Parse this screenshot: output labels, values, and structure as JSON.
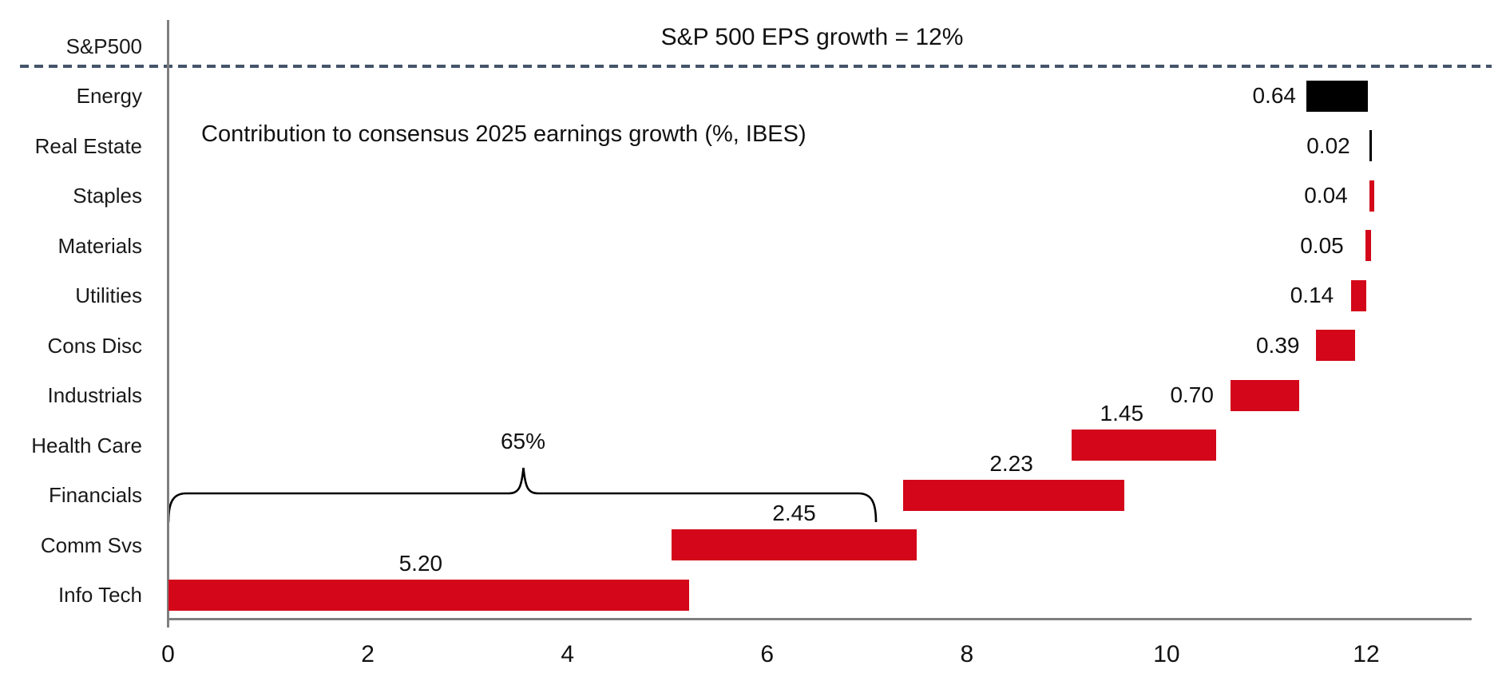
{
  "chart_data": {
    "type": "bar",
    "orientation": "horizontal-waterfall",
    "title": "Contribution to consensus 2025 earnings growth (%, IBES)",
    "reference_line_label": "S&P 500 EPS growth = 12%",
    "reference_total": 12,
    "bracket_annotation": {
      "label": "65%",
      "from": 0,
      "to": 7.09
    },
    "x_ticks": [
      "0",
      "2",
      "4",
      "6",
      "8",
      "10",
      "12"
    ],
    "x_tick_values": [
      0,
      2,
      4,
      6,
      8,
      10,
      12
    ],
    "xlim": [
      0,
      13.05
    ],
    "grid": false,
    "legend": false,
    "rows": [
      {
        "label": "S&P500",
        "type": "reference"
      },
      {
        "label": "Energy",
        "value": 0.64,
        "value_label": "0.64",
        "start": 11.4,
        "end": 12.02,
        "color": "black",
        "label_pos": "left",
        "label_gap": 13
      },
      {
        "label": "Real Estate",
        "value": 0.02,
        "value_label": "0.02",
        "start": 12.03,
        "end": 12.06,
        "color": "black",
        "label_pos": "left",
        "label_gap": 24
      },
      {
        "label": "Staples",
        "value": 0.04,
        "value_label": "0.04",
        "start": 12.03,
        "end": 12.08,
        "color": "red",
        "label_pos": "left",
        "label_gap": 27
      },
      {
        "label": "Materials",
        "value": 0.05,
        "value_label": "0.05",
        "start": 11.99,
        "end": 12.05,
        "color": "red",
        "label_pos": "left",
        "label_gap": 27
      },
      {
        "label": "Utilities",
        "value": 0.14,
        "value_label": "0.14",
        "start": 11.85,
        "end": 12.0,
        "color": "red",
        "label_pos": "left",
        "label_gap": 22
      },
      {
        "label": "Cons Disc",
        "value": 0.39,
        "value_label": "0.39",
        "start": 11.5,
        "end": 11.89,
        "color": "red",
        "label_pos": "left",
        "label_gap": 21
      },
      {
        "label": "Industrials",
        "value": 0.7,
        "value_label": "0.70",
        "start": 10.64,
        "end": 11.33,
        "color": "red",
        "label_pos": "left",
        "label_gap": 21
      },
      {
        "label": "Health Care",
        "value": 1.45,
        "value_label": "1.45",
        "start": 9.05,
        "end": 10.5,
        "color": "red",
        "label_pos": "above",
        "label_dx": -28
      },
      {
        "label": "Financials",
        "value": 2.23,
        "value_label": "2.23",
        "start": 7.36,
        "end": 9.58,
        "color": "red",
        "label_pos": "above",
        "label_dx": -3
      },
      {
        "label": "Comm Svs",
        "value": 2.45,
        "value_label": "2.45",
        "start": 5.04,
        "end": 7.5,
        "color": "red",
        "label_pos": "above",
        "label_dx": 0
      },
      {
        "label": "Info Tech",
        "value": 5.2,
        "value_label": "5.20",
        "start": 0.0,
        "end": 5.22,
        "color": "red",
        "label_pos": "above",
        "label_dx": -10
      }
    ],
    "colors": {
      "bar_red": "#D3061A",
      "bar_black": "#000000",
      "reference_dashed_line": "#44546A",
      "axis_line": "#7F7F7F",
      "text": "#1F1F1F"
    }
  }
}
